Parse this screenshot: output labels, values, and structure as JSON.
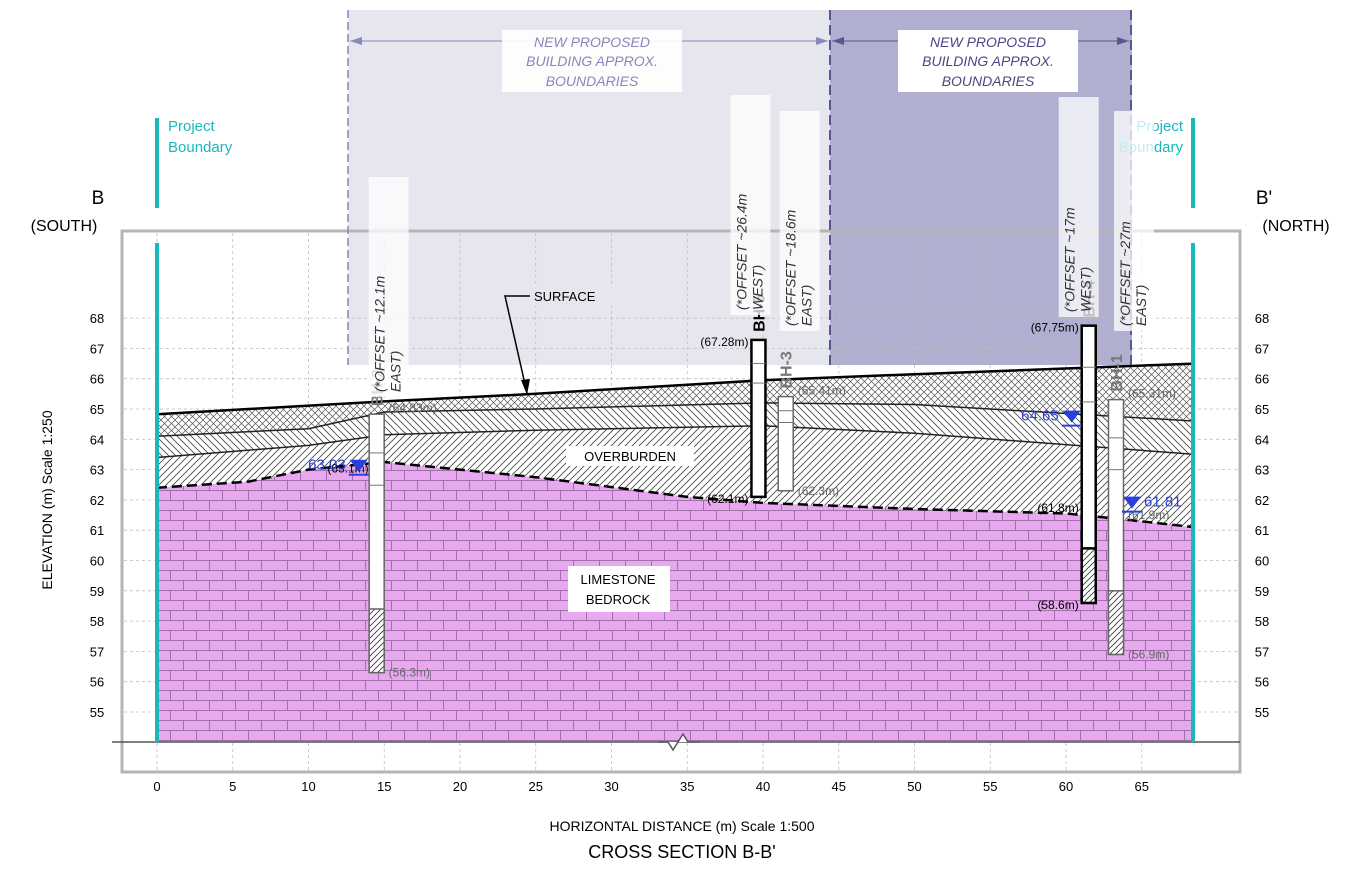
{
  "title": "CROSS SECTION B-B'",
  "x_axis_label": "HORIZONTAL DISTANCE (m) Scale 1:500",
  "y_axis_label": "ELEVATION (m) Scale 1:250",
  "left_end": {
    "letter": "B",
    "direction": "(SOUTH)"
  },
  "right_end": {
    "letter": "B'",
    "direction": "(NORTH)"
  },
  "project_boundary_label": [
    "Project",
    "Boundary"
  ],
  "proposed_building_label": [
    "NEW PROPOSED",
    "BUILDING APPROX.",
    "BOUNDARIES"
  ],
  "layer_labels": {
    "surface": "SURFACE",
    "overburden": "OVERBURDEN",
    "bedrock": [
      "LIMESTONE",
      "BEDROCK"
    ]
  },
  "x_ticks": [
    "0",
    "5",
    "10",
    "15",
    "20",
    "25",
    "30",
    "35",
    "40",
    "45",
    "50",
    "55",
    "60",
    "65"
  ],
  "y_ticks": [
    "55",
    "56",
    "57",
    "58",
    "59",
    "60",
    "61",
    "62",
    "63",
    "64",
    "65",
    "66",
    "67",
    "68"
  ],
  "boreholes": [
    {
      "id": "BH-2",
      "x": 14.5,
      "top": 64.83,
      "bottom": 56.3,
      "top_label": "(64.83m)",
      "bottom_label": "(56.3m)",
      "rock_label": "(63.1m)",
      "offset": [
        "(*OFFSET ~12.1m",
        "EAST)"
      ],
      "water_level": "63.03",
      "style": "grey"
    },
    {
      "id": "BH-5",
      "x": 39.7,
      "top": 67.28,
      "bottom": 62.1,
      "top_label": "(67.28m)",
      "bottom_label": "(62.1m)",
      "offset": [
        "(*OFFSET ~26.4m",
        "WEST)"
      ],
      "style": "bold"
    },
    {
      "id": "BH-3",
      "x": 41.5,
      "top": 65.41,
      "bottom": 62.3,
      "top_label": "(65.41m)",
      "bottom_label": "(62.3m)",
      "offset": [
        "(*OFFSET ~18.6m",
        "EAST)"
      ],
      "style": "grey"
    },
    {
      "id": "BH-4",
      "x": 61.5,
      "top": 67.75,
      "bottom": 58.6,
      "top_label": "(67.75m)",
      "bottom_label": "(58.6m)",
      "rock_label": "(61.8m)",
      "offset": [
        "(*OFFSET ~17m",
        "WEST)"
      ],
      "water_level": "64.65",
      "style": "bold"
    },
    {
      "id": "BH-1",
      "x": 63.3,
      "top": 65.31,
      "bottom": 56.9,
      "top_label": "(65.31m)",
      "bottom_label": "(56.9m)",
      "rock_label": "(61.9m)",
      "offset": [
        "(*OFFSET ~27m",
        "EAST)"
      ],
      "water_level": "61.81",
      "style": "grey"
    }
  ],
  "layers": {
    "surface": [
      [
        0,
        64.83
      ],
      [
        15,
        65.25
      ],
      [
        25,
        65.5
      ],
      [
        40,
        65.95
      ],
      [
        50,
        66.15
      ],
      [
        68.5,
        66.5
      ]
    ],
    "fill_base": [
      [
        0,
        64.1
      ],
      [
        10,
        64.35
      ],
      [
        15,
        64.9
      ],
      [
        25,
        65.0
      ],
      [
        40,
        65.2
      ],
      [
        50,
        65.15
      ],
      [
        68.5,
        64.6
      ]
    ],
    "overburden_mid": [
      [
        0,
        63.4
      ],
      [
        10,
        63.8
      ],
      [
        15,
        64.15
      ],
      [
        25,
        64.3
      ],
      [
        40,
        64.45
      ],
      [
        50,
        64.2
      ],
      [
        68.5,
        63.5
      ]
    ],
    "bedrock": [
      [
        0,
        62.4
      ],
      [
        6,
        62.6
      ],
      [
        10,
        63.0
      ],
      [
        15,
        63.25
      ],
      [
        25,
        62.75
      ],
      [
        35,
        62.1
      ],
      [
        40,
        61.9
      ],
      [
        50,
        61.7
      ],
      [
        60,
        61.55
      ],
      [
        63,
        61.4
      ],
      [
        68.5,
        61.1
      ]
    ]
  },
  "colors": {
    "bedrock": "#e8a8f0",
    "teal": "#19b8bd",
    "water": "#2a3fe0",
    "building_light": "#e6e6ee",
    "building_dark": "#b0afd0"
  }
}
